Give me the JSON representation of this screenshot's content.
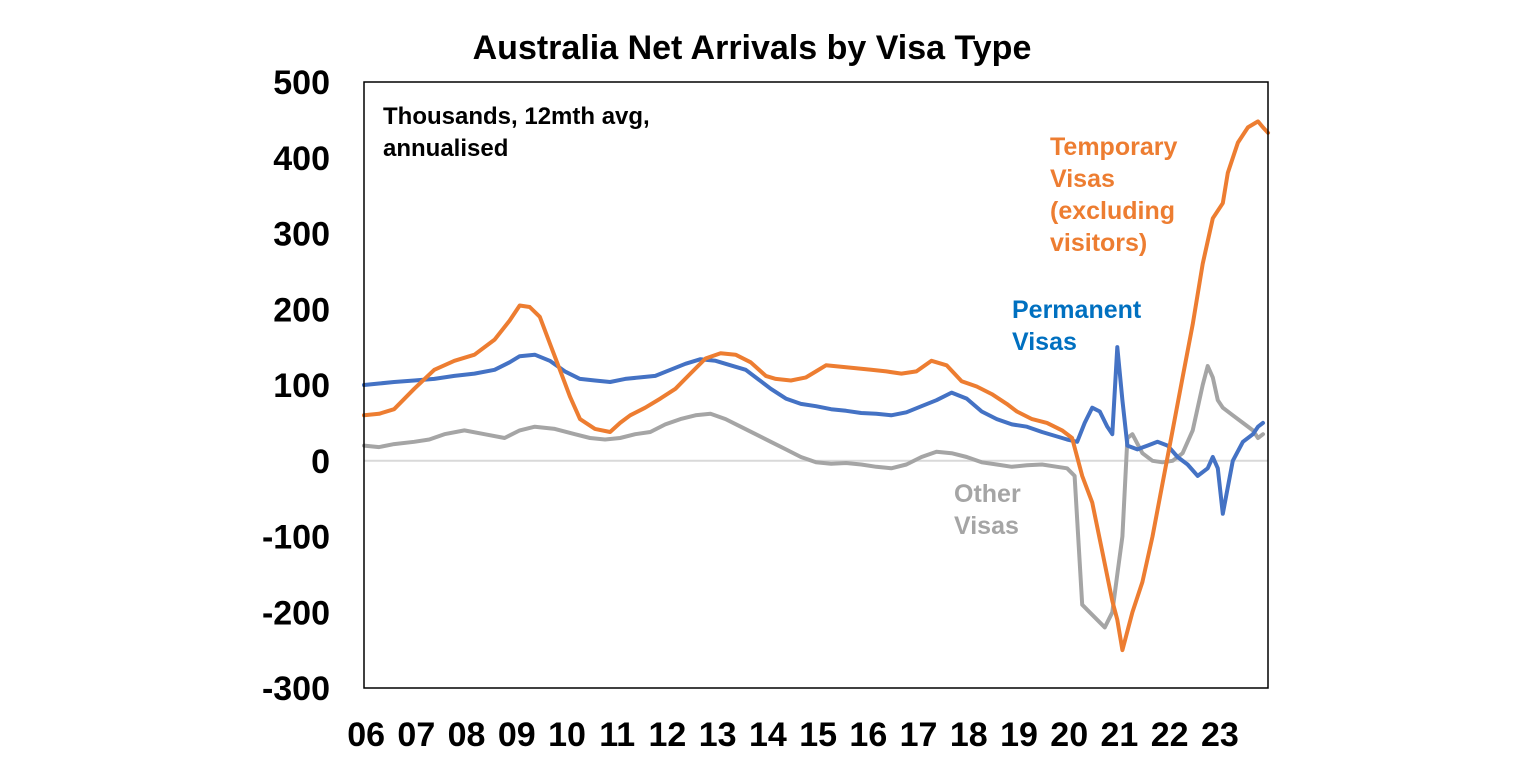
{
  "chart_data": {
    "type": "line",
    "title": "Australia Net Arrivals by Visa Type",
    "annotation": [
      "Thousands, 12mth avg,",
      "annualised"
    ],
    "xlabel": "",
    "ylabel": "",
    "ylim": [
      -300,
      500
    ],
    "yticks": [
      500,
      400,
      300,
      200,
      100,
      0,
      -100,
      -200,
      -300
    ],
    "ytick_labels": [
      "500",
      "400",
      "300",
      "200",
      "100",
      "0",
      "-100",
      "-200",
      "-300"
    ],
    "xlim": [
      2006.0,
      2024.0
    ],
    "xticks": [
      2006,
      2007,
      2008,
      2009,
      2010,
      2011,
      2012,
      2013,
      2014,
      2015,
      2016,
      2017,
      2018,
      2019,
      2020,
      2021,
      2022,
      2023
    ],
    "xtick_labels": [
      "06",
      "07",
      "08",
      "09",
      "10",
      "11",
      "12",
      "13",
      "14",
      "15",
      "16",
      "17",
      "18",
      "19",
      "20",
      "21",
      "22",
      "23"
    ],
    "grid": false,
    "zero_line": true,
    "series": [
      {
        "name": "Temporary Visas (excluding visitors)",
        "label_lines": [
          "Temporary",
          "Visas",
          "(excluding",
          "visitors)"
        ],
        "color": "#ED7D31",
        "x": [
          2006.0,
          2006.3,
          2006.6,
          2007.0,
          2007.4,
          2007.8,
          2008.2,
          2008.6,
          2008.9,
          2009.1,
          2009.3,
          2009.5,
          2009.7,
          2009.9,
          2010.1,
          2010.3,
          2010.6,
          2010.9,
          2011.1,
          2011.3,
          2011.6,
          2011.9,
          2012.2,
          2012.5,
          2012.8,
          2013.1,
          2013.4,
          2013.7,
          2014.0,
          2014.2,
          2014.5,
          2014.8,
          2015.0,
          2015.2,
          2015.5,
          2015.8,
          2016.1,
          2016.4,
          2016.7,
          2017.0,
          2017.3,
          2017.6,
          2017.9,
          2018.2,
          2018.5,
          2018.8,
          2019.0,
          2019.3,
          2019.6,
          2019.9,
          2020.1,
          2020.3,
          2020.5,
          2020.7,
          2020.9,
          2021.0,
          2021.1,
          2021.3,
          2021.5,
          2021.7,
          2021.9,
          2022.1,
          2022.3,
          2022.5,
          2022.7,
          2022.9,
          2023.1,
          2023.2,
          2023.4,
          2023.6,
          2023.8,
          2023.9,
          2024.0
        ],
        "y": [
          60,
          62,
          68,
          95,
          120,
          132,
          140,
          160,
          185,
          205,
          203,
          190,
          155,
          120,
          85,
          55,
          42,
          38,
          50,
          60,
          70,
          82,
          95,
          115,
          135,
          142,
          140,
          130,
          112,
          108,
          106,
          110,
          118,
          126,
          124,
          122,
          120,
          118,
          115,
          118,
          132,
          126,
          105,
          98,
          88,
          75,
          65,
          55,
          50,
          40,
          30,
          -20,
          -55,
          -120,
          -185,
          -210,
          -250,
          -200,
          -160,
          -100,
          -30,
          40,
          110,
          180,
          260,
          320,
          340,
          380,
          420,
          440,
          448,
          440,
          433
        ]
      },
      {
        "name": "Permanent Visas",
        "label_lines": [
          "Permanent",
          "Visas"
        ],
        "color": "#4472C4",
        "label_color": "#0070C0",
        "x": [
          2006.0,
          2006.3,
          2006.6,
          2007.0,
          2007.4,
          2007.8,
          2008.2,
          2008.6,
          2008.9,
          2009.1,
          2009.4,
          2009.7,
          2010.0,
          2010.3,
          2010.6,
          2010.9,
          2011.2,
          2011.5,
          2011.8,
          2012.1,
          2012.4,
          2012.7,
          2013.0,
          2013.3,
          2013.6,
          2013.9,
          2014.1,
          2014.4,
          2014.7,
          2015.0,
          2015.3,
          2015.6,
          2015.9,
          2016.2,
          2016.5,
          2016.8,
          2017.1,
          2017.4,
          2017.7,
          2018.0,
          2018.3,
          2018.6,
          2018.9,
          2019.2,
          2019.5,
          2019.8,
          2020.0,
          2020.2,
          2020.35,
          2020.5,
          2020.65,
          2020.8,
          2020.9,
          2021.0,
          2021.1,
          2021.2,
          2021.4,
          2021.6,
          2021.8,
          2022.0,
          2022.2,
          2022.4,
          2022.6,
          2022.8,
          2022.9,
          2023.0,
          2023.1,
          2023.3,
          2023.5,
          2023.7,
          2023.8,
          2023.9
        ],
        "y": [
          100,
          102,
          104,
          106,
          108,
          112,
          115,
          120,
          130,
          138,
          140,
          132,
          118,
          108,
          106,
          104,
          108,
          110,
          112,
          120,
          128,
          134,
          132,
          126,
          120,
          105,
          95,
          82,
          75,
          72,
          68,
          66,
          63,
          62,
          60,
          64,
          72,
          80,
          90,
          82,
          65,
          55,
          48,
          45,
          38,
          32,
          28,
          25,
          50,
          70,
          65,
          45,
          35,
          150,
          80,
          20,
          15,
          20,
          25,
          20,
          5,
          -5,
          -20,
          -10,
          5,
          -10,
          -70,
          0,
          25,
          35,
          45,
          50
        ]
      },
      {
        "name": "Other Visas",
        "label_lines": [
          "Other",
          "Visas"
        ],
        "color": "#A5A5A5",
        "x": [
          2006.0,
          2006.3,
          2006.6,
          2007.0,
          2007.3,
          2007.6,
          2008.0,
          2008.4,
          2008.8,
          2009.1,
          2009.4,
          2009.8,
          2010.2,
          2010.5,
          2010.8,
          2011.1,
          2011.4,
          2011.7,
          2012.0,
          2012.3,
          2012.6,
          2012.9,
          2013.2,
          2013.5,
          2013.8,
          2014.1,
          2014.4,
          2014.7,
          2015.0,
          2015.3,
          2015.6,
          2015.9,
          2016.2,
          2016.5,
          2016.8,
          2017.1,
          2017.4,
          2017.7,
          2018.0,
          2018.3,
          2018.6,
          2018.9,
          2019.2,
          2019.5,
          2019.8,
          2020.0,
          2020.15,
          2020.3,
          2020.45,
          2020.6,
          2020.75,
          2020.9,
          2021.0,
          2021.1,
          2021.2,
          2021.3,
          2021.5,
          2021.7,
          2021.9,
          2022.1,
          2022.3,
          2022.5,
          2022.7,
          2022.8,
          2022.9,
          2023.0,
          2023.1,
          2023.3,
          2023.5,
          2023.7,
          2023.8,
          2023.9
        ],
        "y": [
          20,
          18,
          22,
          25,
          28,
          35,
          40,
          35,
          30,
          40,
          45,
          42,
          35,
          30,
          28,
          30,
          35,
          38,
          48,
          55,
          60,
          62,
          55,
          45,
          35,
          25,
          15,
          5,
          -2,
          -4,
          -3,
          -5,
          -8,
          -10,
          -5,
          5,
          12,
          10,
          5,
          -2,
          -5,
          -8,
          -6,
          -5,
          -8,
          -10,
          -20,
          -190,
          -200,
          -210,
          -220,
          -200,
          -150,
          -100,
          30,
          35,
          10,
          0,
          -2,
          0,
          10,
          40,
          100,
          125,
          110,
          80,
          70,
          60,
          50,
          40,
          30,
          35
        ]
      }
    ]
  }
}
